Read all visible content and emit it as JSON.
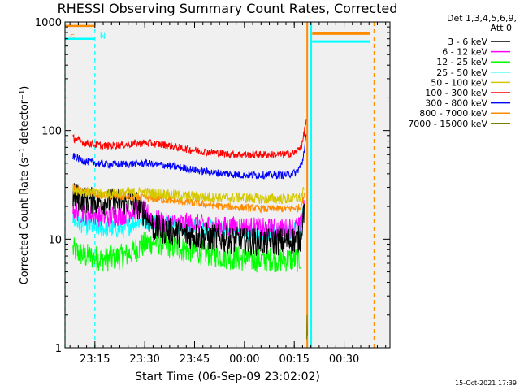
{
  "chart_data": {
    "type": "line",
    "title": "RHESSI Observing Summary Count Rates, Corrected",
    "ylabel": "Corrected Count Rate (s⁻¹ detector⁻¹)",
    "xlabel": "Start Time (06-Sep-09 23:02:02)",
    "yscale": "log",
    "ylim": [
      1,
      1000
    ],
    "xlim": [
      23.1,
      24.73
    ],
    "x_ticks": [
      {
        "x": 23.25,
        "label": "23:15"
      },
      {
        "x": 23.5,
        "label": "23:30"
      },
      {
        "x": 23.75,
        "label": "23:45"
      },
      {
        "x": 24.0,
        "label": "00:00"
      },
      {
        "x": 24.25,
        "label": "00:15"
      },
      {
        "x": 24.5,
        "label": "00:30"
      }
    ],
    "y_ticks": [
      {
        "y": 1,
        "label": "1"
      },
      {
        "y": 10,
        "label": "10"
      },
      {
        "y": 100,
        "label": "100"
      },
      {
        "y": 1000,
        "label": "1000"
      }
    ],
    "legend_header": [
      "Det 1,3,4,5,6,9,",
      "Att 0"
    ],
    "legend_position": "right",
    "timestamp": "15-Oct-2021 17:39",
    "flags": [
      {
        "name": "S",
        "color": "#ff8c00",
        "x_start": 23.1,
        "x_end": 23.25,
        "y": 920
      },
      {
        "name": "N",
        "color": "#00ffff",
        "x_start": 23.1,
        "x_end": 23.25,
        "y": 700
      }
    ],
    "flag_bars_after": [
      {
        "color": "#ff8c00",
        "x_start": 24.34,
        "x_end": 24.63,
        "y": 780
      },
      {
        "color": "#00ffff",
        "x_start": 24.34,
        "x_end": 24.63,
        "y": 660
      }
    ],
    "vlines": [
      {
        "x": 23.1,
        "color": "#00ffff"
      },
      {
        "x": 23.25,
        "color": "#00ffff"
      },
      {
        "x": 24.33,
        "color": "#00ffff"
      },
      {
        "x": 24.65,
        "color": "#ff8c00"
      }
    ],
    "solid_vlines": [
      {
        "x": 24.315,
        "color": "#ff8c00"
      },
      {
        "x": 24.335,
        "color": "#00ffff"
      }
    ],
    "series": [
      {
        "name": "3 - 6 keV",
        "color": "#000000",
        "noise": 0.13,
        "x": [
          23.14,
          23.2,
          23.3,
          23.4,
          23.46,
          23.49,
          23.55,
          23.6,
          23.7,
          23.8,
          23.9,
          24.0,
          24.1,
          24.2,
          24.28,
          24.3
        ],
        "y": [
          25,
          23,
          22,
          22,
          21,
          18,
          12.5,
          12,
          11,
          10.5,
          10,
          9.5,
          9.5,
          9.5,
          10,
          20
        ]
      },
      {
        "name": "6 - 12 keV",
        "color": "#ff00ff",
        "noise": 0.1,
        "x": [
          23.14,
          23.2,
          23.3,
          23.4,
          23.45,
          23.5,
          23.55,
          23.6,
          23.7,
          23.8,
          23.9,
          24.0,
          24.1,
          24.2,
          24.28,
          24.3
        ],
        "y": [
          19,
          17,
          16,
          17,
          19,
          18,
          15,
          14,
          14,
          13.5,
          13,
          13,
          12.5,
          12.5,
          13,
          22
        ]
      },
      {
        "name": "12 - 25 keV",
        "color": "#00ff00",
        "noise": 0.12,
        "x": [
          23.14,
          23.2,
          23.3,
          23.4,
          23.5,
          23.55,
          23.6,
          23.7,
          23.8,
          23.9,
          24.0,
          24.1,
          24.2,
          24.28
        ],
        "y": [
          8,
          7,
          6.5,
          7,
          9,
          9.5,
          9,
          8,
          7.5,
          7,
          6.5,
          6.5,
          6.5,
          6.5
        ]
      },
      {
        "name": "25 - 50 keV",
        "color": "#00ffff",
        "noise": 0.09,
        "x": [
          23.14,
          23.2,
          23.3,
          23.4,
          23.45,
          23.5,
          23.6,
          23.7,
          23.8,
          23.9,
          24.0,
          24.1,
          24.2,
          24.28,
          24.3
        ],
        "y": [
          15,
          13.5,
          12.5,
          12.5,
          14.5,
          15,
          14,
          13,
          12.5,
          12,
          11.5,
          11.5,
          11.5,
          12,
          20
        ]
      },
      {
        "name": "50 - 100 keV",
        "color": "#d4c800",
        "noise": 0.05,
        "x": [
          23.14,
          23.2,
          23.3,
          23.4,
          23.5,
          23.6,
          23.7,
          23.8,
          23.9,
          24.0,
          24.1,
          24.2,
          24.28,
          24.3
        ],
        "y": [
          29,
          27,
          26,
          27,
          27,
          26,
          25,
          24.5,
          24,
          24,
          23.5,
          23.5,
          24,
          28
        ]
      },
      {
        "name": "100 - 300 keV",
        "color": "#ff0000",
        "noise": 0.035,
        "x": [
          23.14,
          23.2,
          23.3,
          23.4,
          23.5,
          23.6,
          23.7,
          23.8,
          23.9,
          24.0,
          24.1,
          24.2,
          24.26,
          24.29,
          24.31
        ],
        "y": [
          85,
          77,
          72,
          74,
          77,
          74,
          68,
          64,
          61,
          60,
          60,
          60,
          63,
          75,
          125
        ]
      },
      {
        "name": "300 - 800 keV",
        "color": "#0000ff",
        "noise": 0.035,
        "x": [
          23.14,
          23.2,
          23.3,
          23.4,
          23.5,
          23.6,
          23.7,
          23.8,
          23.9,
          24.0,
          24.1,
          24.2,
          24.26,
          24.29,
          24.31
        ],
        "y": [
          58,
          52,
          49,
          49,
          50,
          48,
          45,
          42,
          40,
          39,
          39,
          39,
          41,
          50,
          90
        ]
      },
      {
        "name": "800 - 7000 keV",
        "color": "#ff8c00",
        "noise": 0.035,
        "x": [
          23.14,
          23.2,
          23.3,
          23.4,
          23.5,
          23.6,
          23.7,
          23.8,
          23.9,
          24.0,
          24.1,
          24.2,
          24.28,
          24.3
        ],
        "y": [
          30,
          27,
          25,
          24.5,
          24,
          23,
          22,
          21,
          20,
          19.5,
          19,
          19,
          19.5,
          25
        ]
      },
      {
        "name": "7000 - 15000 keV",
        "color": "#808000",
        "noise": 0.0,
        "x": [
          24.312,
          24.314,
          24.316
        ],
        "y": [
          1.2,
          2.0,
          1.3
        ]
      }
    ]
  }
}
